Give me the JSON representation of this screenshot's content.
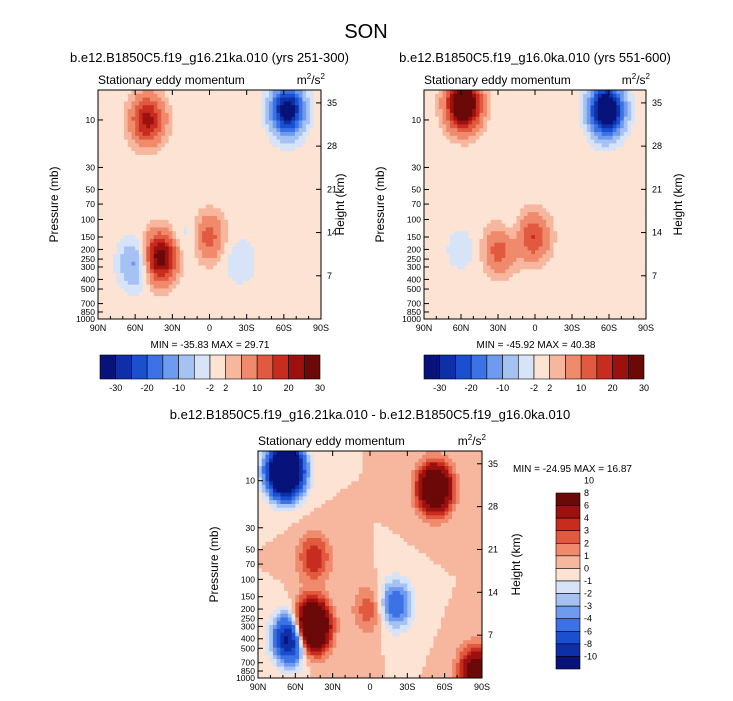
{
  "title": "SON",
  "palettes": {
    "top": [
      "#07137a",
      "#0e2fa8",
      "#1a4fd0",
      "#3b72e6",
      "#6f9bef",
      "#a6c2f3",
      "#d7e4f8",
      "#fde3d3",
      "#f7b79e",
      "#f08a6c",
      "#e15a3f",
      "#c72c1e",
      "#9c1010",
      "#6b0808"
    ],
    "diff": [
      "#07137a",
      "#0e2fa8",
      "#1a4fd0",
      "#3b72e6",
      "#6f9bef",
      "#a6c2f3",
      "#d7e4f8",
      "#fde3d3",
      "#f7b79e",
      "#f08a6c",
      "#e15a3f",
      "#c72c1e",
      "#9c1010",
      "#6b0808"
    ]
  },
  "chart_data": [
    {
      "type": "heatmap",
      "subplot": "top-left",
      "title": "b.e12.B1850C5.f19_g16.21ka.010 (yrs 251-300)",
      "left_string": "Stationary eddy momentum",
      "units_base": "m",
      "units_sup1": "2",
      "units_mid": "/s",
      "units_sup2": "2",
      "xlabel": "",
      "ylabel": "Pressure (mb)",
      "ylabel_right": "Height (km)",
      "x_ticks": [
        "90N",
        "60N",
        "30N",
        "0",
        "30S",
        "60S",
        "90S"
      ],
      "x_values": [
        90,
        60,
        30,
        0,
        -30,
        -60,
        -90
      ],
      "xlim": [
        90,
        -90
      ],
      "y_ticks": [
        "10",
        "30",
        "50",
        "70",
        "100",
        "150",
        "200",
        "250",
        "300",
        "400",
        "500",
        "700",
        "850",
        "1000"
      ],
      "y_values": [
        10,
        30,
        50,
        70,
        100,
        150,
        200,
        250,
        300,
        400,
        500,
        700,
        850,
        1000
      ],
      "ylim": [
        1000,
        5
      ],
      "y_right_ticks": [
        "35",
        "28",
        "21",
        "14",
        "7"
      ],
      "y_right_values": [
        35,
        28,
        21,
        14,
        7
      ],
      "min_label": "MIN = -35.83  MAX =  29.71",
      "min": -35.83,
      "max": 29.71,
      "levels": [
        -30,
        -25,
        -20,
        -15,
        -10,
        -5,
        -2,
        2,
        5,
        10,
        15,
        20,
        25,
        30
      ],
      "colorbar_ticks": [
        "-30",
        "-20",
        "-10",
        "-2",
        "2",
        "10",
        "20",
        "30"
      ],
      "colorbar_tick_values": [
        -30,
        -20,
        -10,
        -2,
        2,
        10,
        20,
        30
      ],
      "features": [
        {
          "lat": 50,
          "p": 10,
          "amp": 22
        },
        {
          "lat": -63,
          "p": 8,
          "amp": -35.83
        },
        {
          "lat": 40,
          "p": 240,
          "amp": 29.71
        },
        {
          "lat": 60,
          "p": 280,
          "amp": -12
        },
        {
          "lat": 2,
          "p": 150,
          "amp": 14
        },
        {
          "lat": 15,
          "p": 150,
          "amp": -6
        },
        {
          "lat": -25,
          "p": 260,
          "amp": -5
        }
      ]
    },
    {
      "type": "heatmap",
      "subplot": "top-right",
      "title": "b.e12.B1850C5.f19_g16.0ka.010 (yrs 551-600)",
      "left_string": "Stationary eddy momentum",
      "units_base": "m",
      "units_sup1": "2",
      "units_mid": "/s",
      "units_sup2": "2",
      "xlabel": "",
      "ylabel": "Pressure (mb)",
      "ylabel_right": "Height (km)",
      "x_ticks": [
        "90N",
        "60N",
        "30N",
        "0",
        "30S",
        "60S",
        "90S"
      ],
      "x_values": [
        90,
        60,
        30,
        0,
        -30,
        -60,
        -90
      ],
      "xlim": [
        90,
        -90
      ],
      "y_ticks": [
        "10",
        "30",
        "50",
        "70",
        "100",
        "150",
        "200",
        "250",
        "300",
        "400",
        "500",
        "700",
        "850",
        "1000"
      ],
      "y_values": [
        10,
        30,
        50,
        70,
        100,
        150,
        200,
        250,
        300,
        400,
        500,
        700,
        850,
        1000
      ],
      "ylim": [
        1000,
        5
      ],
      "y_right_ticks": [
        "35",
        "28",
        "21",
        "14",
        "7"
      ],
      "y_right_values": [
        35,
        28,
        21,
        14,
        7
      ],
      "min_label": "MIN = -45.92  MAX =  40.38",
      "min": -45.92,
      "max": 40.38,
      "levels": [
        -30,
        -25,
        -20,
        -15,
        -10,
        -5,
        -2,
        2,
        5,
        10,
        15,
        20,
        25,
        30
      ],
      "colorbar_ticks": [
        "-30",
        "-20",
        "-10",
        "-2",
        "2",
        "10",
        "20",
        "30"
      ],
      "colorbar_tick_values": [
        -30,
        -20,
        -10,
        -2,
        2,
        10,
        20,
        30
      ],
      "features": [
        {
          "lat": 58,
          "p": 7,
          "amp": 40.38
        },
        {
          "lat": -58,
          "p": 8,
          "amp": -45.92
        },
        {
          "lat": 28,
          "p": 200,
          "amp": 14
        },
        {
          "lat": 2,
          "p": 150,
          "amp": 16
        },
        {
          "lat": 18,
          "p": 150,
          "amp": -5
        },
        {
          "lat": 60,
          "p": 200,
          "amp": -4
        }
      ]
    },
    {
      "type": "heatmap",
      "subplot": "bottom-center",
      "title": "b.e12.B1850C5.f19_g16.21ka.010 - b.e12.B1850C5.f19_g16.0ka.010",
      "left_string": "Stationary eddy momentum",
      "units_base": "m",
      "units_sup1": "2",
      "units_mid": "/s",
      "units_sup2": "2",
      "xlabel": "",
      "ylabel": "Pressure (mb)",
      "ylabel_right": "Height (km)",
      "x_ticks": [
        "90N",
        "60N",
        "30N",
        "0",
        "30S",
        "60S",
        "90S"
      ],
      "x_values": [
        90,
        60,
        30,
        0,
        -30,
        -60,
        -90
      ],
      "xlim": [
        90,
        -90
      ],
      "y_ticks": [
        "10",
        "30",
        "50",
        "70",
        "100",
        "150",
        "200",
        "250",
        "300",
        "400",
        "500",
        "700",
        "850",
        "1000"
      ],
      "y_values": [
        10,
        30,
        50,
        70,
        100,
        150,
        200,
        250,
        300,
        400,
        500,
        700,
        850,
        1000
      ],
      "ylim": [
        1000,
        5
      ],
      "y_right_ticks": [
        "35",
        "28",
        "21",
        "14",
        "7"
      ],
      "y_right_values": [
        35,
        28,
        21,
        14,
        7
      ],
      "min_label": "MIN = -24.95  MAX =  16.87",
      "min": -24.95,
      "max": 16.87,
      "levels": [
        -10,
        -8,
        -6,
        -4,
        -3,
        -2,
        -1,
        0,
        1,
        2,
        3,
        4,
        6,
        8,
        10
      ],
      "colorbar_ticks": [
        "10",
        "8",
        "6",
        "4",
        "3",
        "2",
        "1",
        "0",
        "-1",
        "-2",
        "-3",
        "-4",
        "-6",
        "-8",
        "-10"
      ],
      "colorbar_tick_values": [
        10,
        8,
        6,
        4,
        3,
        2,
        1,
        0,
        -1,
        -2,
        -3,
        -4,
        -6,
        -8,
        -10
      ],
      "features": [
        {
          "lat": 68,
          "p": 8,
          "amp": -24.95
        },
        {
          "lat": -52,
          "p": 12,
          "amp": 12
        },
        {
          "lat": 47,
          "p": 300,
          "amp": 16.87
        },
        {
          "lat": 64,
          "p": 400,
          "amp": -12
        },
        {
          "lat": -20,
          "p": 180,
          "amp": -6
        },
        {
          "lat": 0,
          "p": 200,
          "amp": 3
        },
        {
          "lat": 45,
          "p": 60,
          "amp": 4
        },
        {
          "lat": -85,
          "p": 850,
          "amp": 8
        }
      ]
    }
  ]
}
